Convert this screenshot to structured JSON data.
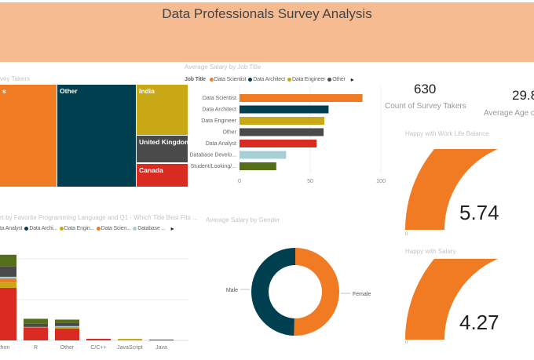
{
  "header": {
    "title": "Data Professionals Survey Analysis"
  },
  "colors": {
    "orange": "#f07b22",
    "teal": "#003f4f",
    "gold": "#c9a815",
    "gray": "#4a4a4a",
    "red": "#d92b21",
    "lightblue": "#a4d0d6",
    "green": "#546e1a",
    "header": "#f7bb92"
  },
  "treemap": {
    "title_visible": "vey Takers",
    "tiles": [
      {
        "label": "s",
        "color": "#f07b22"
      },
      {
        "label": "Other",
        "color": "#003f4f"
      },
      {
        "label": "India",
        "color": "#c9a815"
      },
      {
        "label": "United Kingdom",
        "color": "#4a4a4a"
      },
      {
        "label": "Canada",
        "color": "#d92b21"
      }
    ]
  },
  "salary_by_job": {
    "title": "Average Salary by Job Title",
    "legend_label": "Job Title",
    "legend": [
      {
        "name": "Data Scientist",
        "color": "#f07b22"
      },
      {
        "name": "Data Architect",
        "color": "#003f4f"
      },
      {
        "name": "Data Engineer",
        "color": "#c9a815"
      },
      {
        "name": "Other",
        "color": "#4a4a4a"
      }
    ],
    "ticks": [
      "0",
      "50",
      "100"
    ]
  },
  "stacked": {
    "title_visible": "rt by  Favorite Programming Language and Q1 - Which Title Best Fits ...",
    "legend": [
      {
        "name": "ta Analyst",
        "color": "#d92b21"
      },
      {
        "name": "Data Archi...",
        "color": "#003f4f"
      },
      {
        "name": "Data Engin...",
        "color": "#c9a815"
      },
      {
        "name": "Data Scien...",
        "color": "#f07b22"
      },
      {
        "name": "Database ...",
        "color": "#a4d0d6"
      }
    ]
  },
  "donut": {
    "title": "Average Salary by Gender",
    "labels": [
      "Male",
      "Female"
    ]
  },
  "kpis": [
    {
      "value": "630",
      "label": "Count of Survey Takers"
    },
    {
      "value": "29.8",
      "label": "Average Age of"
    }
  ],
  "gauges": [
    {
      "title": "Happy with Work Life Balance",
      "value": "5.74",
      "min_label": "0"
    },
    {
      "title": "Happy with Salary",
      "value": "4.27",
      "min_label": "0"
    }
  ],
  "chart_data": [
    {
      "type": "bar",
      "title": "Average Salary by Job Title",
      "orientation": "horizontal",
      "categories": [
        "Data Scientist",
        "Data Architect",
        "Data Engineer",
        "Other",
        "Data Analyst",
        "Database Develo...",
        "Student/Looking/..."
      ],
      "values": [
        87,
        63,
        60,
        59.5,
        54.5,
        33,
        26
      ],
      "colors": [
        "#f07b22",
        "#003f4f",
        "#c9a815",
        "#4a4a4a",
        "#d92b21",
        "#a4d0d6",
        "#546e1a"
      ],
      "xlim": [
        0,
        100
      ],
      "grid": true
    },
    {
      "type": "bar",
      "stacked": true,
      "categories": [
        "thon",
        "R",
        "Other",
        "C/C++",
        "JavaScript",
        "Java"
      ],
      "series": [
        {
          "color": "#d92b21",
          "values": [
            129,
            31,
            29,
            4,
            0,
            0
          ]
        },
        {
          "color": "#c9a815",
          "values": [
            13,
            0,
            2,
            0,
            4,
            0
          ]
        },
        {
          "color": "#f07b22",
          "values": [
            10,
            2,
            2,
            0,
            0,
            0
          ]
        },
        {
          "color": "#a4d0d6",
          "values": [
            4,
            0,
            2,
            0,
            0,
            0
          ]
        },
        {
          "color": "#4a4a4a",
          "values": [
            25,
            8,
            8,
            0,
            0,
            2
          ]
        },
        {
          "color": "#546e1a",
          "values": [
            29,
            12,
            8,
            0,
            0,
            0
          ]
        }
      ],
      "grid": true
    },
    {
      "type": "pie",
      "donut": true,
      "title": "Average Salary by Gender",
      "categories": [
        "Female",
        "Male"
      ],
      "values": [
        50.5,
        49.5
      ],
      "colors": [
        "#f07b22",
        "#003f4f"
      ]
    },
    {
      "type": "gauge",
      "title": "Happy with Work Life Balance",
      "value": 5.74,
      "min": 0,
      "max": 10
    },
    {
      "type": "gauge",
      "title": "Happy with Salary",
      "value": 4.27,
      "min": 0,
      "max": 10
    }
  ]
}
